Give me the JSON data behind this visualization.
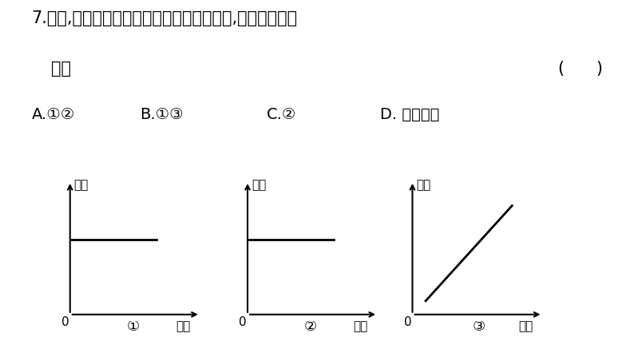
{
  "background_color": "#ffffff",
  "title_line1": "7.如图,各图象所反映的两个变量之间的关系,表示匀速运动",
  "title_line2": "的是",
  "bracket": "(      )",
  "opt_A": "A.①②",
  "opt_B": "B.①③",
  "opt_C": "C.②",
  "opt_D": "D. 无法确定",
  "graph1_ylabel": "路程",
  "graph2_ylabel": "速度",
  "graph3_ylabel": "速度",
  "xlabel": "时间",
  "label1": "①",
  "label2": "②",
  "label3": "③",
  "text_color": "#000000",
  "line_color": "#000000",
  "axis_color": "#000000",
  "font_size_title": 15,
  "font_size_options": 14,
  "font_size_axis": 11,
  "font_size_circled": 13
}
